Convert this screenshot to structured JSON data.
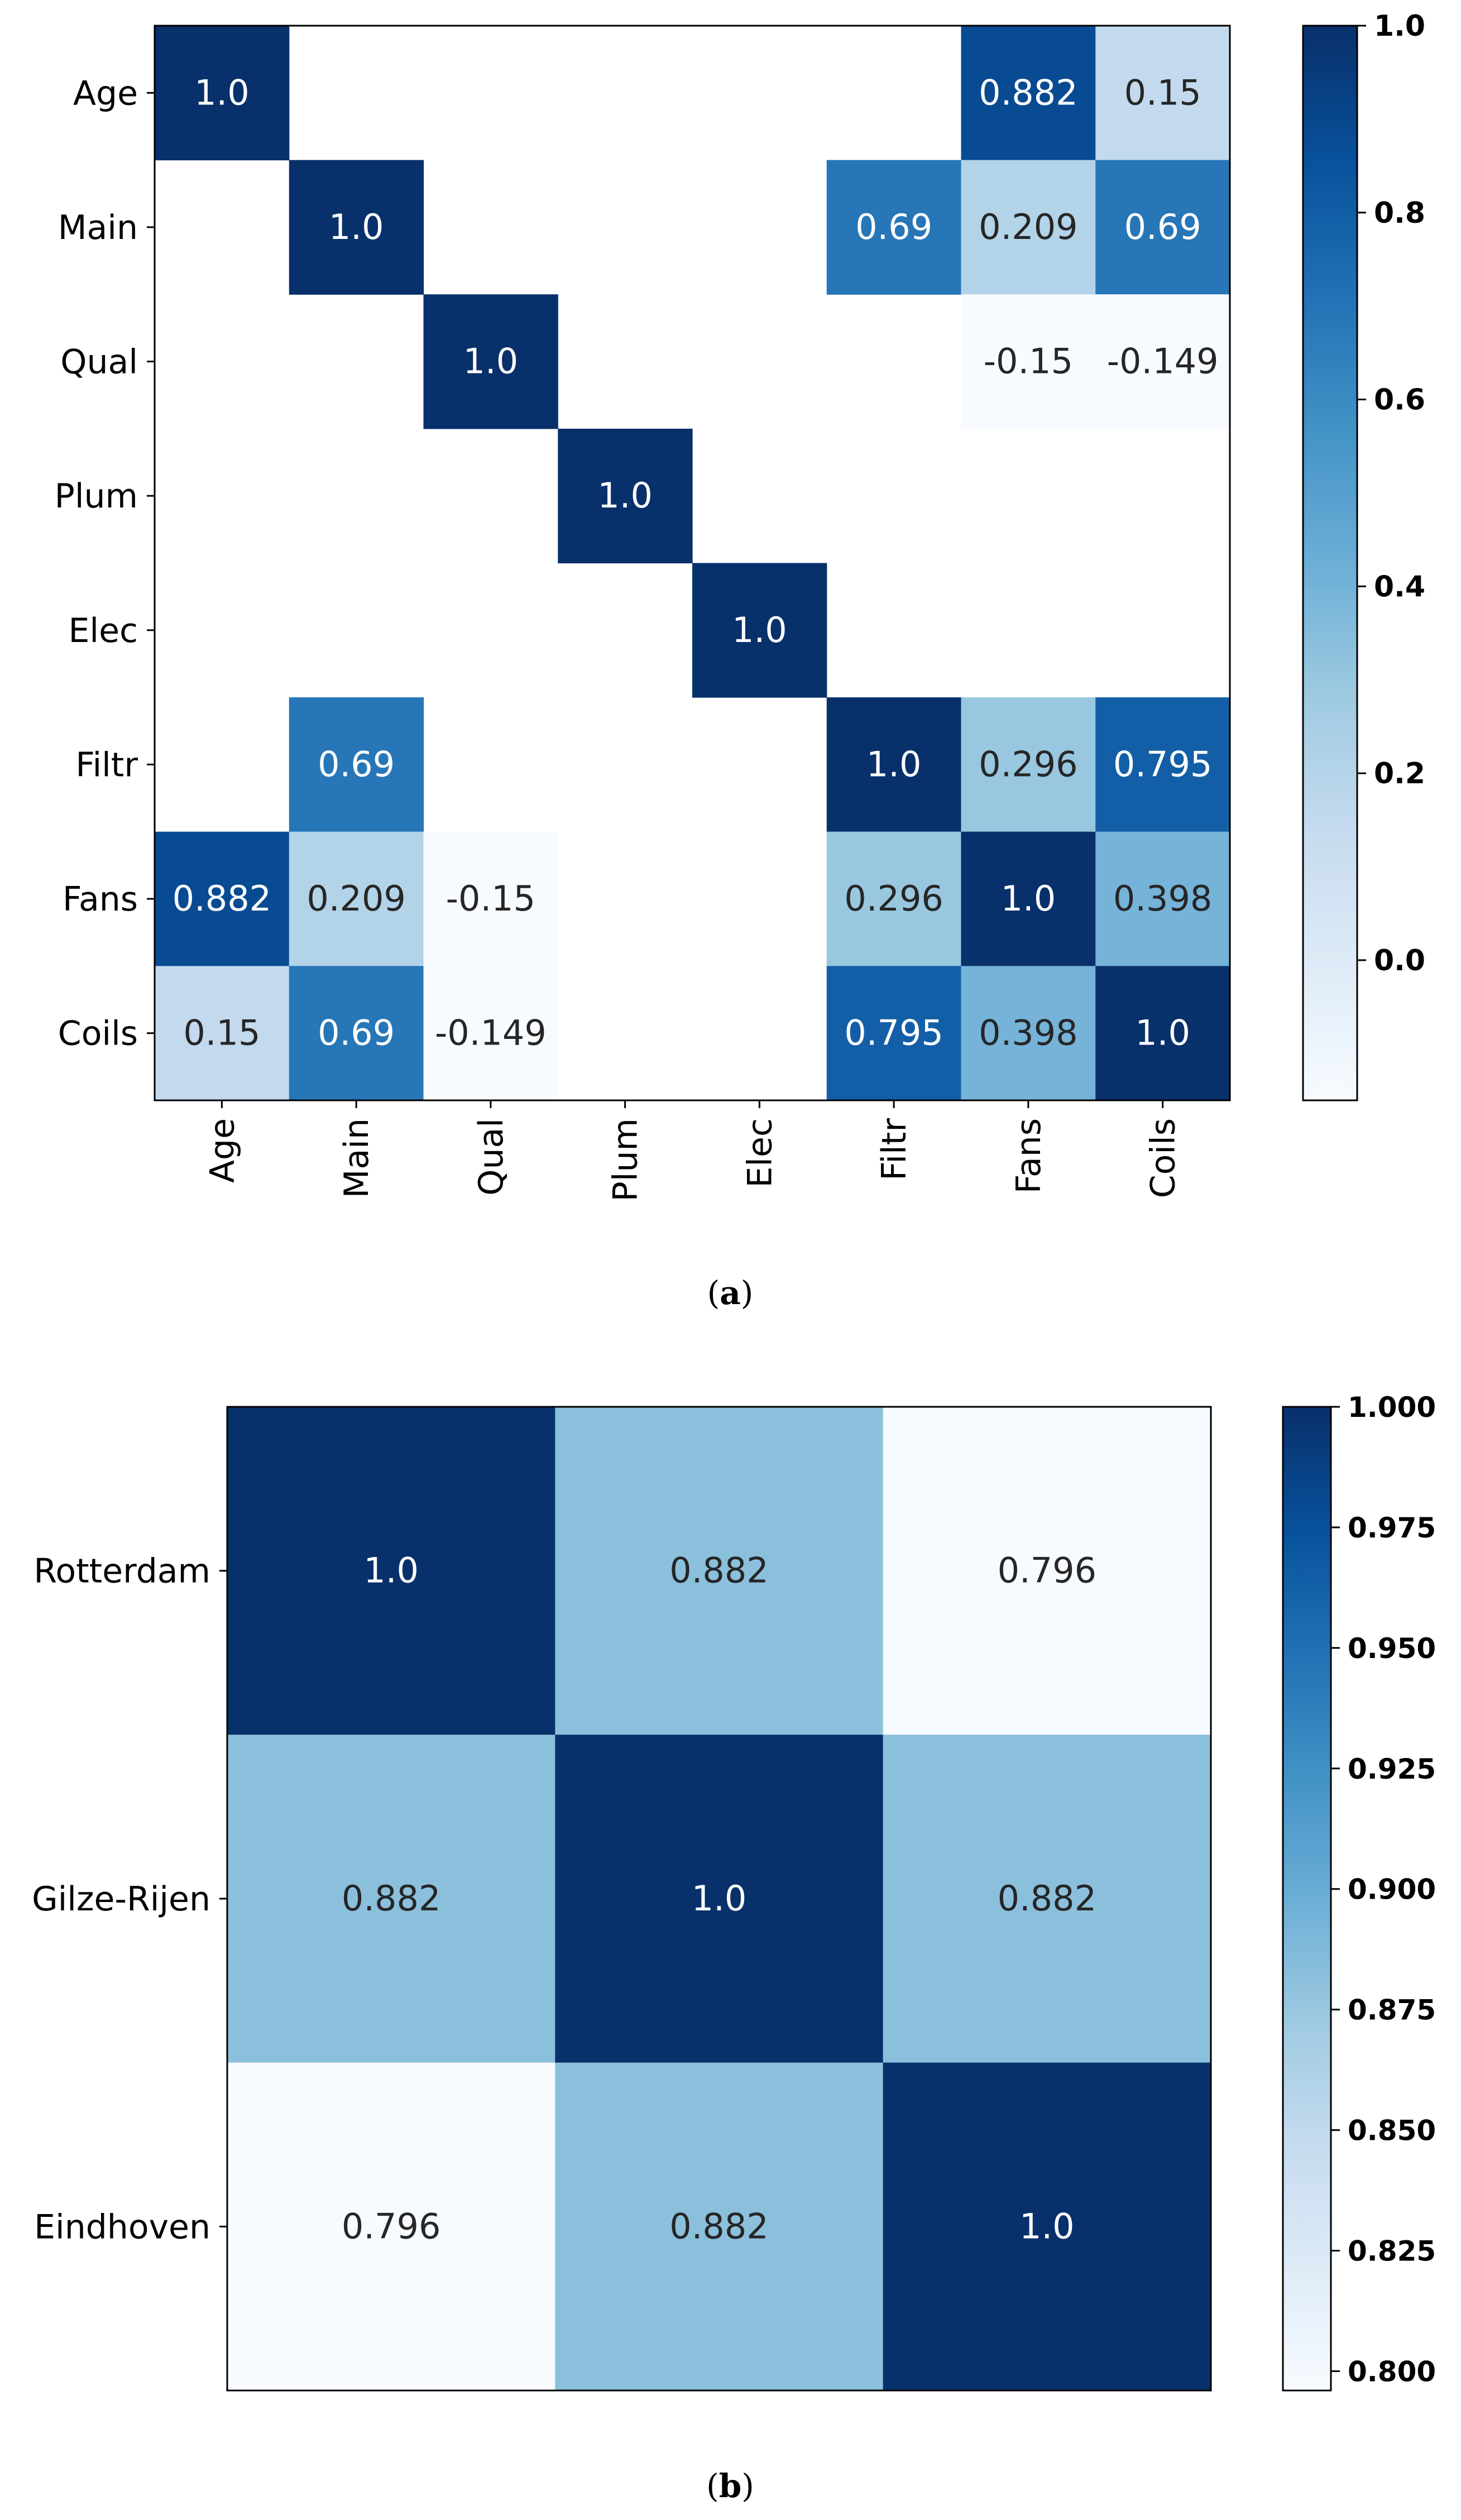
{
  "colors": {
    "low": "#f7fbff",
    "high": "#08306b",
    "light_text": "#ffffff",
    "dark_text": "#262626"
  },
  "chart_data": [
    {
      "type": "heatmap",
      "title": "",
      "caption_prefix": "(",
      "caption_letter": "a",
      "caption_suffix": ")",
      "rows": [
        "Age",
        "Main",
        "Qual",
        "Plum",
        "Elec",
        "Filtr",
        "Fans",
        "Coils"
      ],
      "cols": [
        "Age",
        "Main",
        "Qual",
        "Plum",
        "Elec",
        "Filtr",
        "Fans",
        "Coils"
      ],
      "values": [
        [
          1.0,
          null,
          null,
          null,
          null,
          null,
          0.882,
          0.15
        ],
        [
          null,
          1.0,
          null,
          null,
          null,
          0.69,
          0.209,
          0.69
        ],
        [
          null,
          null,
          1.0,
          null,
          null,
          null,
          -0.15,
          -0.149
        ],
        [
          null,
          null,
          null,
          1.0,
          null,
          null,
          null,
          null
        ],
        [
          null,
          null,
          null,
          null,
          1.0,
          null,
          null,
          null
        ],
        [
          null,
          0.69,
          null,
          null,
          null,
          1.0,
          0.296,
          0.795
        ],
        [
          0.882,
          0.209,
          -0.15,
          null,
          null,
          0.296,
          1.0,
          0.398
        ],
        [
          0.15,
          0.69,
          -0.149,
          null,
          null,
          0.795,
          0.398,
          1.0
        ]
      ],
      "labels": [
        [
          "1.0",
          "",
          "",
          "",
          "",
          "",
          "0.882",
          "0.15"
        ],
        [
          "",
          "1.0",
          "",
          "",
          "",
          "0.69",
          "0.209",
          "0.69"
        ],
        [
          "",
          "",
          "1.0",
          "",
          "",
          "",
          "-0.15",
          "-0.149"
        ],
        [
          "",
          "",
          "",
          "1.0",
          "",
          "",
          "",
          ""
        ],
        [
          "",
          "",
          "",
          "",
          "1.0",
          "",
          "",
          ""
        ],
        [
          "",
          "0.69",
          "",
          "",
          "",
          "1.0",
          "0.296",
          "0.795"
        ],
        [
          "0.882",
          "0.209",
          "-0.15",
          "",
          "",
          "0.296",
          "1.0",
          "0.398"
        ],
        [
          "0.15",
          "0.69",
          "-0.149",
          "",
          "",
          "0.795",
          "0.398",
          "1.0"
        ]
      ],
      "vmin": -0.15,
      "vmax": 1.0,
      "colorbar_ticks": [
        {
          "value": 0.0,
          "label": "0.0"
        },
        {
          "value": 0.2,
          "label": "0.2"
        },
        {
          "value": 0.4,
          "label": "0.4"
        },
        {
          "value": 0.6,
          "label": "0.6"
        },
        {
          "value": 0.8,
          "label": "0.8"
        },
        {
          "value": 1.0,
          "label": "1.0"
        }
      ]
    },
    {
      "type": "heatmap",
      "title": "",
      "caption_prefix": "(",
      "caption_letter": "b",
      "caption_suffix": ")",
      "rows": [
        "Rotterdam",
        "Gilze-Rijen",
        "Eindhoven"
      ],
      "cols": [],
      "values": [
        [
          1.0,
          0.882,
          0.796
        ],
        [
          0.882,
          1.0,
          0.882
        ],
        [
          0.796,
          0.882,
          1.0
        ]
      ],
      "labels": [
        [
          "1.0",
          "0.882",
          "0.796"
        ],
        [
          "0.882",
          "1.0",
          "0.882"
        ],
        [
          "0.796",
          "0.882",
          "1.0"
        ]
      ],
      "vmin": 0.796,
      "vmax": 1.0,
      "colorbar_ticks": [
        {
          "value": 0.8,
          "label": "0.800"
        },
        {
          "value": 0.825,
          "label": "0.825"
        },
        {
          "value": 0.85,
          "label": "0.850"
        },
        {
          "value": 0.875,
          "label": "0.875"
        },
        {
          "value": 0.9,
          "label": "0.900"
        },
        {
          "value": 0.925,
          "label": "0.925"
        },
        {
          "value": 0.95,
          "label": "0.950"
        },
        {
          "value": 0.975,
          "label": "0.975"
        },
        {
          "value": 1.0,
          "label": "1.000"
        }
      ]
    }
  ]
}
